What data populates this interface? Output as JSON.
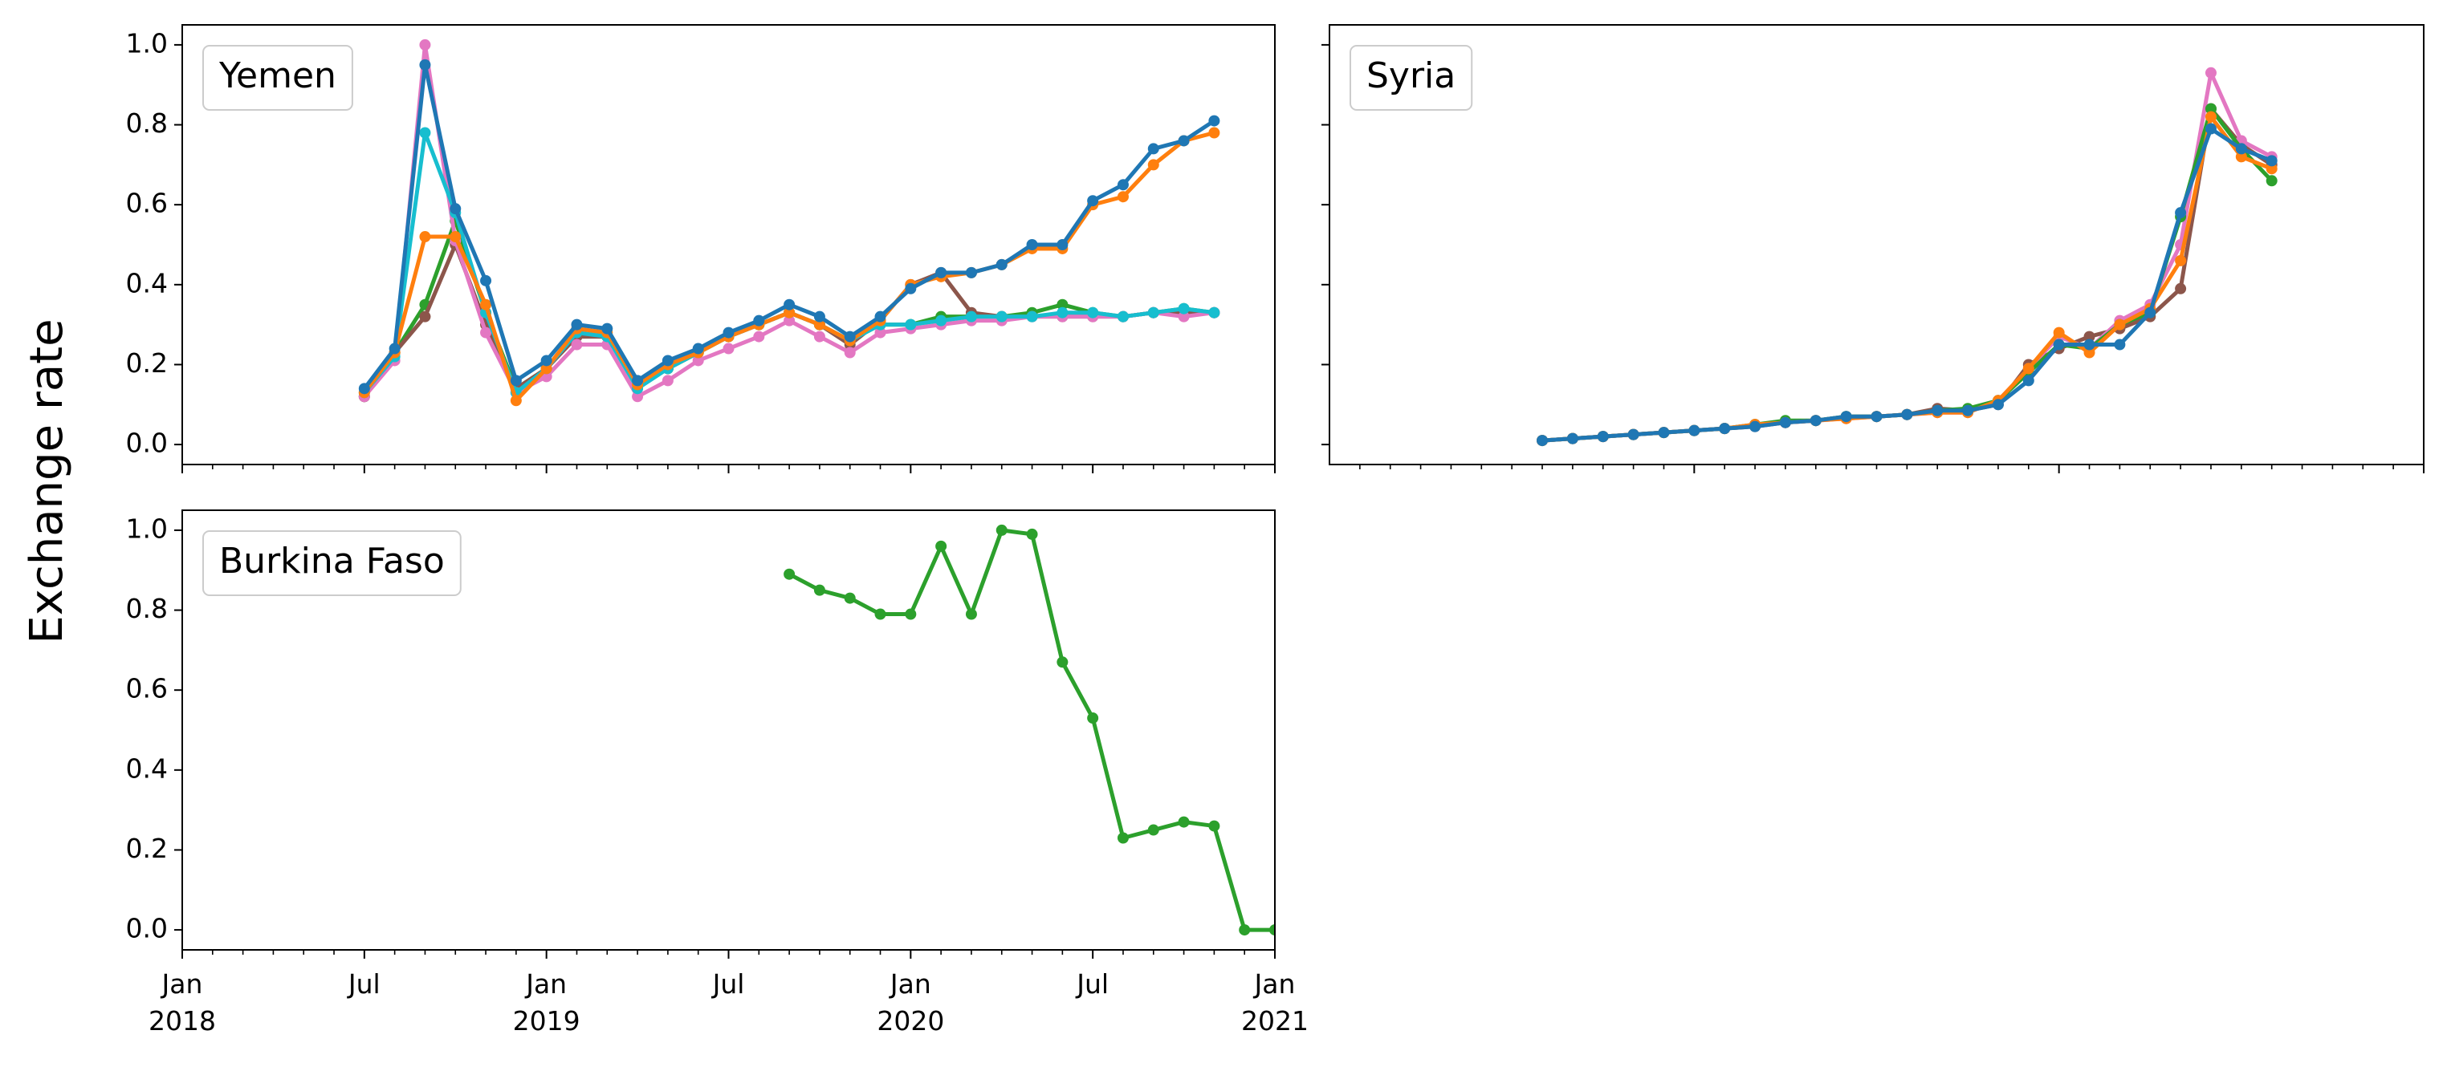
{
  "ylabel": "Exchange rate",
  "chart_data": [
    {
      "type": "line",
      "title": "Yemen",
      "xlim": [
        0,
        36
      ],
      "xticks": [
        0,
        6,
        12,
        18,
        24,
        30,
        36
      ],
      "xminorticks": [
        1,
        2,
        3,
        4,
        5,
        7,
        8,
        9,
        10,
        11,
        13,
        14,
        15,
        16,
        17,
        19,
        20,
        21,
        22,
        23,
        25,
        26,
        27,
        28,
        29,
        31,
        32,
        33,
        34,
        35
      ],
      "xticklabels": false,
      "ylim": [
        -0.05,
        1.05
      ],
      "yticks": [
        {
          "value": 0,
          "label": "0.0"
        },
        0.2,
        0.4,
        0.6,
        0.8,
        {
          "value": 1,
          "label": "1.0"
        }
      ],
      "x": [
        6,
        7,
        8,
        9,
        10,
        11,
        12,
        13,
        14,
        15,
        16,
        17,
        18,
        19,
        20,
        21,
        22,
        23,
        24,
        25,
        26,
        27,
        28,
        29,
        30,
        31,
        32,
        33,
        34
      ],
      "series": [
        {
          "color": "#2ca02c",
          "values": [
            0.12,
            0.23,
            0.35,
            0.56,
            0.33,
            0.14,
            0.19,
            0.28,
            0.27,
            0.15,
            0.19,
            0.23,
            0.27,
            0.3,
            0.33,
            0.3,
            0.26,
            0.3,
            0.3,
            0.32,
            0.32,
            0.32,
            0.33,
            0.35,
            0.33,
            0.32,
            0.33,
            0.34,
            0.33
          ]
        },
        {
          "color": "#8c564b",
          "values": [
            0.12,
            0.23,
            0.32,
            0.5,
            0.3,
            0.14,
            0.19,
            0.27,
            0.27,
            0.15,
            0.19,
            0.23,
            0.27,
            0.3,
            0.33,
            0.3,
            0.25,
            0.31,
            0.4,
            0.43,
            0.33,
            0.32,
            0.32,
            0.32,
            0.32,
            0.32,
            0.33,
            0.33,
            0.33
          ]
        },
        {
          "color": "#e377c2",
          "values": [
            0.12,
            0.21,
            1.0,
            0.51,
            0.28,
            0.13,
            0.17,
            0.25,
            0.25,
            0.12,
            0.16,
            0.21,
            0.24,
            0.27,
            0.31,
            0.27,
            0.23,
            0.28,
            0.29,
            0.3,
            0.31,
            0.31,
            0.32,
            0.32,
            0.32,
            0.32,
            0.33,
            0.32,
            0.33
          ]
        },
        {
          "color": "#17becf",
          "values": [
            0.13,
            0.22,
            0.78,
            0.58,
            0.33,
            0.13,
            0.19,
            0.28,
            0.27,
            0.14,
            0.19,
            0.23,
            0.27,
            0.3,
            0.33,
            0.3,
            0.26,
            0.3,
            0.3,
            0.31,
            0.32,
            0.32,
            0.32,
            0.33,
            0.33,
            0.32,
            0.33,
            0.34,
            0.33
          ]
        },
        {
          "color": "#ff7f0e",
          "values": [
            0.13,
            0.23,
            0.52,
            0.52,
            0.35,
            0.11,
            0.19,
            0.29,
            0.28,
            0.15,
            0.2,
            0.23,
            0.27,
            0.3,
            0.33,
            0.3,
            0.26,
            0.31,
            0.4,
            0.42,
            0.43,
            0.45,
            0.49,
            0.49,
            0.6,
            0.62,
            0.7,
            0.76,
            0.78
          ]
        },
        {
          "color": "#1f77b4",
          "values": [
            0.14,
            0.24,
            0.95,
            0.59,
            0.41,
            0.16,
            0.21,
            0.3,
            0.29,
            0.16,
            0.21,
            0.24,
            0.28,
            0.31,
            0.35,
            0.32,
            0.27,
            0.32,
            0.39,
            0.43,
            0.43,
            0.45,
            0.5,
            0.5,
            0.61,
            0.65,
            0.74,
            0.76,
            0.81
          ]
        }
      ]
    },
    {
      "type": "line",
      "title": "Syria",
      "xlim": [
        0,
        36
      ],
      "xticks": [
        12,
        24,
        36
      ],
      "xminorticks": [
        1,
        2,
        3,
        4,
        5,
        6,
        7,
        8,
        9,
        10,
        11,
        13,
        14,
        15,
        16,
        17,
        18,
        19,
        20,
        21,
        22,
        23,
        25,
        26,
        27,
        28,
        29,
        30,
        31,
        32,
        33,
        34,
        35
      ],
      "xticklabels": false,
      "yticklabels": false,
      "ylim": [
        -0.05,
        1.05
      ],
      "yticks": [
        0,
        0.2,
        0.4,
        0.6,
        0.8,
        1
      ],
      "x": [
        7,
        8,
        9,
        10,
        11,
        12,
        13,
        14,
        15,
        16,
        17,
        18,
        19,
        20,
        21,
        22,
        23,
        24,
        25,
        26,
        27,
        28,
        29,
        30,
        31
      ],
      "series": [
        {
          "color": "#8c564b",
          "values": [
            0.01,
            0.015,
            0.02,
            0.025,
            0.03,
            0.035,
            0.04,
            0.045,
            0.055,
            0.06,
            0.07,
            0.07,
            0.075,
            0.09,
            0.085,
            0.1,
            0.2,
            0.24,
            0.27,
            0.29,
            0.32,
            0.39,
            0.84,
            0.75,
            0.7
          ]
        },
        {
          "color": "#e377c2",
          "values": [
            0.01,
            0.015,
            0.02,
            0.025,
            0.03,
            0.035,
            0.04,
            0.05,
            0.055,
            0.06,
            0.065,
            0.07,
            0.075,
            0.08,
            0.08,
            0.11,
            0.19,
            0.27,
            0.24,
            0.31,
            0.35,
            0.5,
            0.93,
            0.76,
            0.72
          ]
        },
        {
          "color": "#2ca02c",
          "values": [
            0.01,
            0.015,
            0.02,
            0.025,
            0.03,
            0.035,
            0.04,
            0.05,
            0.06,
            0.06,
            0.07,
            0.07,
            0.075,
            0.085,
            0.09,
            0.11,
            0.18,
            0.25,
            0.24,
            0.3,
            0.33,
            0.57,
            0.84,
            0.74,
            0.66
          ]
        },
        {
          "color": "#ff7f0e",
          "values": [
            0.01,
            0.015,
            0.02,
            0.025,
            0.03,
            0.035,
            0.04,
            0.05,
            0.055,
            0.06,
            0.065,
            0.07,
            0.075,
            0.08,
            0.08,
            0.11,
            0.19,
            0.28,
            0.23,
            0.3,
            0.34,
            0.46,
            0.82,
            0.72,
            0.69
          ]
        },
        {
          "color": "#1f77b4",
          "values": [
            0.01,
            0.015,
            0.02,
            0.025,
            0.03,
            0.035,
            0.04,
            0.045,
            0.055,
            0.06,
            0.07,
            0.07,
            0.075,
            0.085,
            0.085,
            0.1,
            0.16,
            0.25,
            0.25,
            0.25,
            0.33,
            0.58,
            0.79,
            0.74,
            0.71
          ]
        }
      ]
    },
    {
      "type": "line",
      "title": "Burkina Faso",
      "xlim": [
        0,
        36
      ],
      "xticks": [
        {
          "value": 0,
          "label": "Jan\n2018"
        },
        {
          "value": 6,
          "label": "Jul"
        },
        {
          "value": 12,
          "label": "Jan\n2019"
        },
        {
          "value": 18,
          "label": "Jul"
        },
        {
          "value": 24,
          "label": "Jan\n2020"
        },
        {
          "value": 30,
          "label": "Jul"
        },
        {
          "value": 36,
          "label": "Jan\n2021"
        }
      ],
      "xminorticks": [
        1,
        2,
        3,
        4,
        5,
        7,
        8,
        9,
        10,
        11,
        13,
        14,
        15,
        16,
        17,
        19,
        20,
        21,
        22,
        23,
        25,
        26,
        27,
        28,
        29,
        31,
        32,
        33,
        34,
        35
      ],
      "ylim": [
        -0.05,
        1.05
      ],
      "yticks": [
        {
          "value": 0,
          "label": "0.0"
        },
        0.2,
        0.4,
        0.6,
        0.8,
        {
          "value": 1,
          "label": "1.0"
        }
      ],
      "x": [
        20,
        21,
        22,
        23,
        24,
        25,
        26,
        27,
        28,
        29,
        30,
        31,
        32,
        33,
        34,
        35,
        36
      ],
      "series": [
        {
          "color": "#2ca02c",
          "values": [
            0.89,
            0.85,
            0.83,
            0.79,
            0.79,
            0.96,
            0.79,
            1.0,
            0.99,
            0.67,
            0.53,
            0.23,
            0.25,
            0.27,
            0.26,
            0.0,
            0.0
          ]
        }
      ]
    }
  ]
}
